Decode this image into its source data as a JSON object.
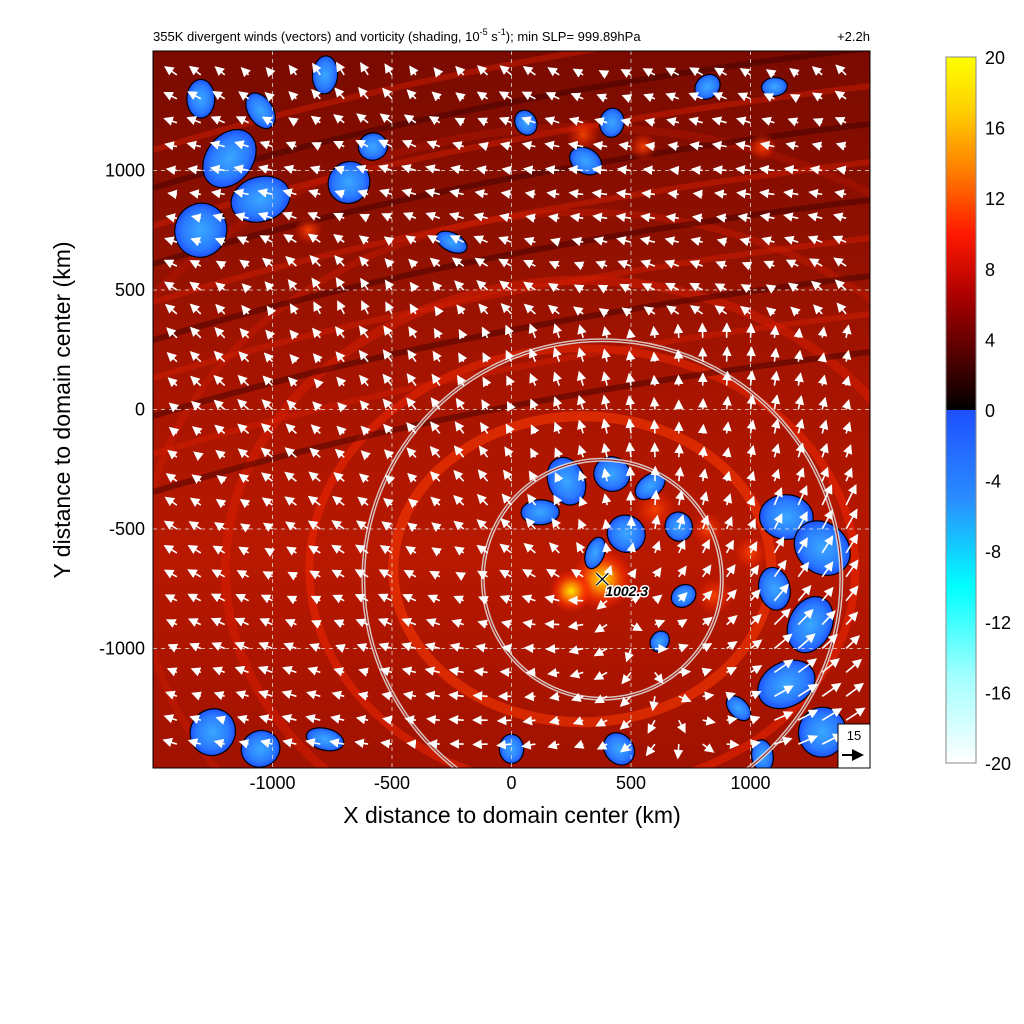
{
  "chart_data": {
    "type": "heatmap",
    "title": "355K divergent winds (vectors) and vorticity (shading, 10",
    "title_exp1": "-5",
    "title_mid": " s",
    "title_exp2": "-1",
    "title_tail": "); min SLP= 999.89hPa",
    "time_label": "+2.2h",
    "xlabel": "X distance to domain center (km)",
    "ylabel": "Y distance to domain center (km)",
    "xlim": [
      -1500,
      1500
    ],
    "ylim": [
      -1500,
      1500
    ],
    "xticks": [
      -1000,
      -500,
      0,
      500,
      1000
    ],
    "yticks": [
      1000,
      500,
      0,
      -500,
      -1000
    ],
    "grid": true,
    "grid_style": "dashed",
    "colorbar": {
      "range": [
        -20,
        20
      ],
      "ticks": [
        20,
        16,
        12,
        8,
        4,
        0,
        -4,
        -8,
        -12,
        -16,
        -20
      ],
      "positive_colors": [
        "#000000",
        "#5a0000",
        "#b00000",
        "#ff1a00",
        "#ff7a00",
        "#ffd000",
        "#ffff00"
      ],
      "negative_colors": [
        "#1e50ff",
        "#2a8cff",
        "#00ffff",
        "#a0ffff",
        "#ffffff"
      ]
    },
    "center_marker": {
      "x": 380,
      "y": -710,
      "label": "1002.3"
    },
    "rings_km": [
      500,
      1000
    ],
    "reference_vector": {
      "label": "15",
      "value": 15
    },
    "blue_regions": [
      {
        "x": -1300,
        "y": 1300,
        "r": 90
      },
      {
        "x": -1180,
        "y": 1050,
        "r": 130
      },
      {
        "x": -1050,
        "y": 880,
        "r": 110
      },
      {
        "x": -1300,
        "y": 750,
        "r": 120
      },
      {
        "x": -1050,
        "y": 1250,
        "r": 80
      },
      {
        "x": -780,
        "y": 1400,
        "r": 70
      },
      {
        "x": -680,
        "y": 950,
        "r": 100
      },
      {
        "x": -580,
        "y": 1100,
        "r": 60
      },
      {
        "x": -250,
        "y": 700,
        "r": 60
      },
      {
        "x": 60,
        "y": 1200,
        "r": 60
      },
      {
        "x": 420,
        "y": 1200,
        "r": 60
      },
      {
        "x": 820,
        "y": 1350,
        "r": 50
      },
      {
        "x": 1100,
        "y": 1350,
        "r": 60
      },
      {
        "x": 310,
        "y": 1040,
        "r": 70
      },
      {
        "x": 230,
        "y": -300,
        "r": 90
      },
      {
        "x": 420,
        "y": -270,
        "r": 80
      },
      {
        "x": 580,
        "y": -320,
        "r": 70
      },
      {
        "x": 120,
        "y": -430,
        "r": 70
      },
      {
        "x": 480,
        "y": -520,
        "r": 90
      },
      {
        "x": 700,
        "y": -490,
        "r": 60
      },
      {
        "x": 350,
        "y": -600,
        "r": 60
      },
      {
        "x": 720,
        "y": -780,
        "r": 60
      },
      {
        "x": 1150,
        "y": -450,
        "r": 110
      },
      {
        "x": 1300,
        "y": -580,
        "r": 110
      },
      {
        "x": 1100,
        "y": -750,
        "r": 100
      },
      {
        "x": 1250,
        "y": -900,
        "r": 120
      },
      {
        "x": 1150,
        "y": -1150,
        "r": 110
      },
      {
        "x": 1300,
        "y": -1350,
        "r": 110
      },
      {
        "x": 950,
        "y": -1250,
        "r": 60
      },
      {
        "x": 1050,
        "y": -1450,
        "r": 60
      },
      {
        "x": -1250,
        "y": -1350,
        "r": 110
      },
      {
        "x": -1050,
        "y": -1420,
        "r": 80
      },
      {
        "x": -780,
        "y": -1380,
        "r": 70
      },
      {
        "x": 450,
        "y": -1420,
        "r": 80
      },
      {
        "x": 0,
        "y": -1420,
        "r": 60
      },
      {
        "x": 620,
        "y": -970,
        "r": 40
      }
    ],
    "hot_regions": [
      {
        "x": 380,
        "y": -710,
        "r": 130,
        "level": 19
      },
      {
        "x": 250,
        "y": -760,
        "r": 90,
        "level": 17
      },
      {
        "x": 850,
        "y": -780,
        "r": 80,
        "level": 15
      },
      {
        "x": 820,
        "y": -500,
        "r": 70,
        "level": 14
      },
      {
        "x": 600,
        "y": -420,
        "r": 90,
        "level": 13
      },
      {
        "x": 1000,
        "y": -600,
        "r": 70,
        "level": 14
      },
      {
        "x": -850,
        "y": 750,
        "r": 60,
        "level": 13
      },
      {
        "x": 300,
        "y": 1150,
        "r": 70,
        "level": 12
      },
      {
        "x": 550,
        "y": 1100,
        "r": 60,
        "level": 12
      },
      {
        "x": 1050,
        "y": 1100,
        "r": 60,
        "level": 12
      }
    ]
  }
}
